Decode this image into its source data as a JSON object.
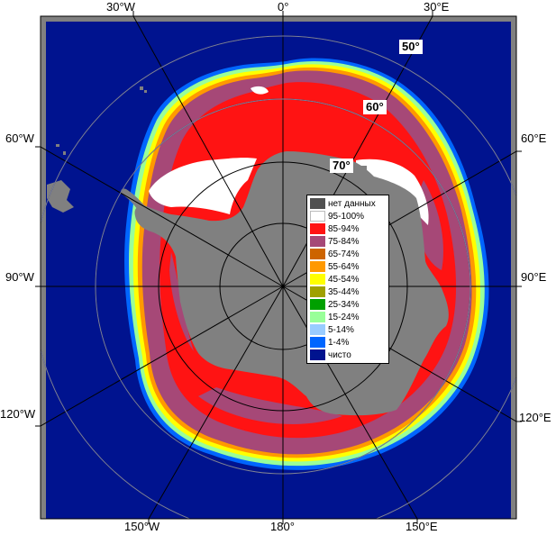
{
  "map": {
    "colors": {
      "ocean": "#00138f",
      "land": "#808080",
      "ice_95": "#ffffff",
      "ice_85": "#ff1313",
      "ice_75": "#a64877",
      "ice_65": "#cd6400",
      "ice_55": "#ff9900",
      "ice_45": "#ffff00",
      "ice_35": "#a0a000",
      "ice_25": "#00a000",
      "ice_15": "#99ff99",
      "ice_5": "#99ccff",
      "ice_1": "#0066ff"
    },
    "longitude_labels": {
      "w30": "30°W",
      "zero": "0°",
      "e30": "30°E",
      "w60": "60°W",
      "e60": "60°E",
      "w90": "90°W",
      "e90": "90°E",
      "w120": "120°W",
      "e120": "120°E",
      "w150": "150°W",
      "deg180": "180°",
      "e150": "150°E"
    },
    "latitude_labels": {
      "lat50": "50°",
      "lat60": "60°",
      "lat70": "70°"
    }
  },
  "legend": {
    "items": [
      {
        "label": "нет данных",
        "color": "#505050"
      },
      {
        "label": "95-100%",
        "color": "#ffffff"
      },
      {
        "label": "85-94%",
        "color": "#ff1313"
      },
      {
        "label": "75-84%",
        "color": "#a64877"
      },
      {
        "label": "65-74%",
        "color": "#cd6400"
      },
      {
        "label": "55-64%",
        "color": "#ff9900"
      },
      {
        "label": "45-54%",
        "color": "#ffff00"
      },
      {
        "label": "35-44%",
        "color": "#a0a000"
      },
      {
        "label": "25-34%",
        "color": "#00a000"
      },
      {
        "label": "15-24%",
        "color": "#99ff99"
      },
      {
        "label": "5-14%",
        "color": "#99ccff"
      },
      {
        "label": "1-4%",
        "color": "#0066ff"
      },
      {
        "label": "чисто",
        "color": "#00138f"
      }
    ]
  }
}
